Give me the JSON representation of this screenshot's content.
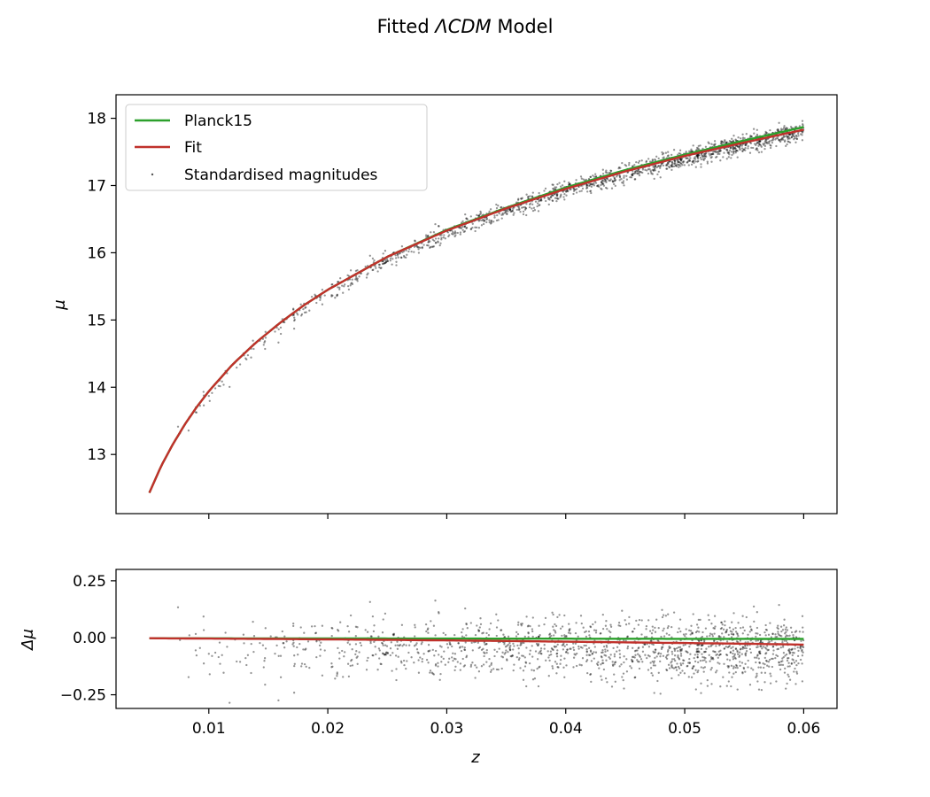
{
  "title": {
    "prefix": "Fitted ",
    "emph": "ΛCDM",
    "suffix": " Model"
  },
  "chart_data": [
    {
      "type": "scatter",
      "panel": "main",
      "ylabel": "μ",
      "xlim": [
        0.0022,
        0.0628
      ],
      "ylim": [
        12.12,
        18.35
      ],
      "yticks": [
        13,
        14,
        15,
        16,
        17,
        18
      ],
      "xticks": [
        0.01,
        0.02,
        0.03,
        0.04,
        0.05,
        0.06
      ],
      "legend": {
        "placement": "upper-left",
        "entries": [
          {
            "label": "Planck15",
            "color": "#2ca02c",
            "kind": "line"
          },
          {
            "label": "Fit",
            "color": "#c0312b",
            "kind": "line"
          },
          {
            "label": "Standardised magnitudes",
            "color": "#555555",
            "kind": "marker"
          }
        ]
      },
      "series": [
        {
          "name": "Planck15",
          "kind": "line",
          "color": "#2ca02c",
          "x": [
            0.005,
            0.006,
            0.007,
            0.008,
            0.009,
            0.01,
            0.012,
            0.014,
            0.016,
            0.018,
            0.02,
            0.025,
            0.03,
            0.035,
            0.04,
            0.045,
            0.05,
            0.055,
            0.06
          ],
          "y": [
            12.43,
            12.83,
            13.16,
            13.45,
            13.71,
            13.94,
            14.34,
            14.67,
            14.96,
            15.22,
            15.45,
            15.94,
            16.34,
            16.67,
            16.97,
            17.23,
            17.46,
            17.67,
            17.87
          ]
        },
        {
          "name": "Fit",
          "kind": "line",
          "color": "#c0312b",
          "x": [
            0.005,
            0.006,
            0.007,
            0.008,
            0.009,
            0.01,
            0.012,
            0.014,
            0.016,
            0.018,
            0.02,
            0.025,
            0.03,
            0.035,
            0.04,
            0.045,
            0.05,
            0.055,
            0.06
          ],
          "y": [
            12.43,
            12.83,
            13.16,
            13.45,
            13.71,
            13.94,
            14.34,
            14.67,
            14.96,
            15.22,
            15.45,
            15.94,
            16.33,
            16.66,
            16.95,
            17.21,
            17.44,
            17.64,
            17.83
          ]
        },
        {
          "name": "Standardised magnitudes",
          "kind": "scatter",
          "color": "#000000",
          "note_points": "approx. 1500 points from z=0.006 to z=0.060 scattered about the curves, denser at higher z",
          "x_range": [
            0.006,
            0.06
          ],
          "count": 1500
        }
      ]
    },
    {
      "type": "scatter",
      "panel": "residual",
      "xlabel": "z",
      "ylabel": "Δμ",
      "xlim": [
        0.0022,
        0.0628
      ],
      "ylim": [
        -0.31,
        0.3
      ],
      "yticks": [
        0.25,
        0.0,
        -0.25
      ],
      "ytick_labels": [
        "0.25",
        "0.00",
        "−0.25"
      ],
      "xticks": [
        0.01,
        0.02,
        0.03,
        0.04,
        0.05,
        0.06
      ],
      "xtick_labels": [
        "0.01",
        "0.02",
        "0.03",
        "0.04",
        "0.05",
        "0.06"
      ],
      "series": [
        {
          "name": "Planck15",
          "kind": "line",
          "color": "#2ca02c",
          "x": [
            0.005,
            0.02,
            0.04,
            0.06
          ],
          "y": [
            -0.002,
            -0.003,
            -0.004,
            -0.005
          ]
        },
        {
          "name": "Fit",
          "kind": "line",
          "color": "#c0312b",
          "x": [
            0.005,
            0.015,
            0.025,
            0.035,
            0.045,
            0.055,
            0.06
          ],
          "y": [
            -0.002,
            -0.005,
            -0.009,
            -0.014,
            -0.02,
            -0.026,
            -0.03
          ]
        },
        {
          "name": "Residuals",
          "kind": "scatter",
          "color": "#000000",
          "x_range": [
            0.006,
            0.06
          ],
          "y_center": -0.05,
          "y_spread": 0.09,
          "count": 1500
        }
      ]
    }
  ]
}
